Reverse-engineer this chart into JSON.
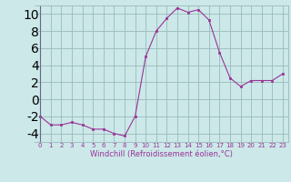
{
  "x": [
    0,
    1,
    2,
    3,
    4,
    5,
    6,
    7,
    8,
    9,
    10,
    11,
    12,
    13,
    14,
    15,
    16,
    17,
    18,
    19,
    20,
    21,
    22,
    23
  ],
  "y": [
    -2,
    -3,
    -3,
    -2.7,
    -3,
    -3.5,
    -3.5,
    -4,
    -4.3,
    -2,
    5,
    8,
    9.5,
    10.7,
    10.2,
    10.5,
    9.3,
    5.5,
    2.5,
    1.5,
    2.2,
    2.2,
    2.2,
    3
  ],
  "line_color": "#993399",
  "marker": "s",
  "marker_size": 2.0,
  "bg_color": "#cce8e8",
  "grid_color": "#99bbbb",
  "xlabel": "Windchill (Refroidissement éolien,°C)",
  "xlabel_color": "#993399",
  "tick_color": "#993399",
  "ylim": [
    -5,
    11
  ],
  "yticks": [
    -4,
    -2,
    0,
    2,
    4,
    6,
    8,
    10
  ],
  "xlim": [
    -0.5,
    23.5
  ],
  "xtick_fontsize": 5.0,
  "ytick_fontsize": 5.5,
  "xlabel_fontsize": 6.0
}
